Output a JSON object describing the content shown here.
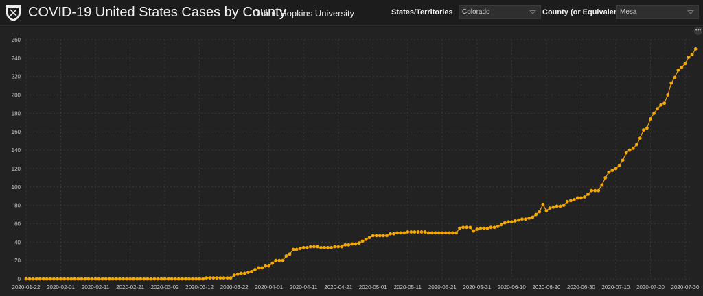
{
  "header": {
    "title": "COVID-19 United States Cases by County",
    "subtitle": "Johns Hopkins University",
    "filters": [
      {
        "label": "States/Territories",
        "value": "Colorado"
      },
      {
        "label": "County (or Equivalent)",
        "value": "Mesa"
      }
    ]
  },
  "colors": {
    "series": "#f5a800",
    "background": "#222222",
    "grid": "#3a3a3a"
  },
  "chart_data": {
    "type": "line",
    "title": "",
    "xlabel": "",
    "ylabel": "",
    "ylim": [
      0,
      260
    ],
    "yticks": [
      0,
      20,
      40,
      60,
      80,
      100,
      120,
      140,
      160,
      180,
      200,
      220,
      240,
      260
    ],
    "xticks": [
      "2020-01-22",
      "2020-02-01",
      "2020-02-11",
      "2020-02-21",
      "2020-03-02",
      "2020-03-12",
      "2020-03-22",
      "2020-04-01",
      "2020-04-11",
      "2020-04-21",
      "2020-05-01",
      "2020-05-11",
      "2020-05-21",
      "2020-05-31",
      "2020-06-10",
      "2020-06-20",
      "2020-06-30",
      "2020-07-10",
      "2020-07-20",
      "2020-07-30"
    ],
    "grid": true,
    "x_start": "2020-01-22",
    "x_end": "2020-07-30",
    "series": [
      {
        "name": "",
        "values": [
          0,
          0,
          0,
          0,
          0,
          0,
          0,
          0,
          0,
          0,
          0,
          0,
          0,
          0,
          0,
          0,
          0,
          0,
          0,
          0,
          0,
          0,
          0,
          0,
          0,
          0,
          0,
          0,
          0,
          0,
          0,
          0,
          0,
          0,
          0,
          0,
          0,
          0,
          0,
          0,
          0,
          0,
          0,
          0,
          0,
          0,
          0,
          0,
          0,
          0,
          0,
          0,
          1,
          1,
          1,
          1,
          1,
          1,
          1,
          1,
          4,
          5,
          6,
          6,
          7,
          8,
          10,
          12,
          12,
          14,
          14,
          17,
          20,
          20,
          20,
          25,
          27,
          32,
          32,
          33,
          34,
          34,
          35,
          35,
          35,
          34,
          34,
          34,
          34,
          35,
          35,
          35,
          37,
          37,
          38,
          38,
          39,
          41,
          43,
          45,
          47,
          47,
          47,
          47,
          47,
          49,
          49,
          50,
          50,
          50,
          51,
          51,
          51,
          51,
          51,
          51,
          50,
          50,
          50,
          50,
          50,
          50,
          50,
          50,
          50,
          55,
          56,
          56,
          56,
          52,
          54,
          55,
          55,
          55,
          56,
          56,
          57,
          59,
          61,
          62,
          62,
          63,
          64,
          65,
          65,
          66,
          67,
          70,
          73,
          81,
          74,
          77,
          78,
          79,
          79,
          80,
          84,
          85,
          86,
          88,
          88,
          89,
          92,
          96,
          96,
          96,
          102,
          110,
          116,
          118,
          120,
          123,
          129,
          137,
          140,
          142,
          146,
          153,
          162,
          164,
          174,
          180,
          185,
          189,
          191,
          200,
          213,
          219,
          227,
          230,
          234,
          241,
          244,
          250
        ]
      }
    ]
  }
}
